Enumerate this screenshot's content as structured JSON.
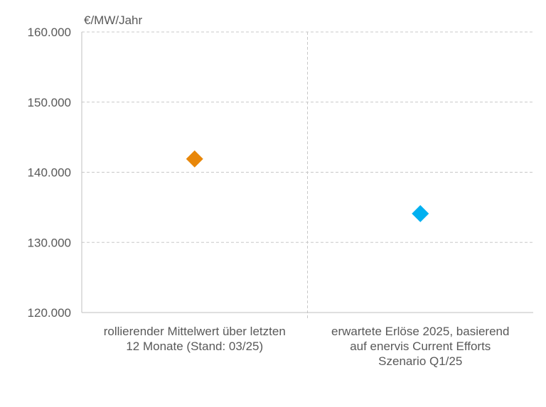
{
  "chart_data": {
    "type": "scatter",
    "ylabel": "€/MW/Jahr",
    "ylim": [
      120000,
      160000
    ],
    "yticks": [
      120000,
      130000,
      140000,
      150000,
      160000
    ],
    "ytick_labels": [
      "120.000",
      "130.000",
      "140.000",
      "150.000",
      "160.000"
    ],
    "grid": true,
    "categories": [
      [
        "rollierender Mittelwert über letzten",
        "12 Monate (Stand: 03/25)"
      ],
      [
        "erwartete Erlöse 2025, basierend",
        "auf enervis Current Efforts",
        "Szenario Q1/25"
      ]
    ],
    "values": [
      141900,
      134100
    ],
    "marker": "diamond",
    "colors": [
      "#E8870A",
      "#00B0F0"
    ]
  }
}
